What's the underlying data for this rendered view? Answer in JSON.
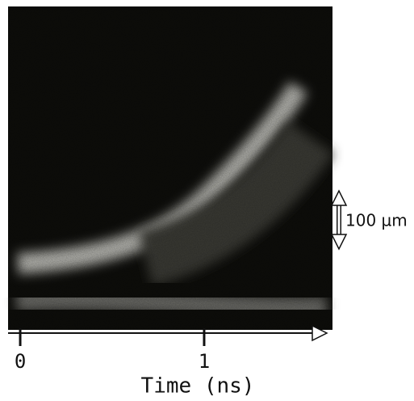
{
  "chart_data": {
    "type": "image",
    "xlabel": "Time (ns)",
    "xlim": [
      -0.066,
      1.667
    ],
    "xticks": [
      0,
      1
    ],
    "scale_bar_label": "100 µm"
  }
}
